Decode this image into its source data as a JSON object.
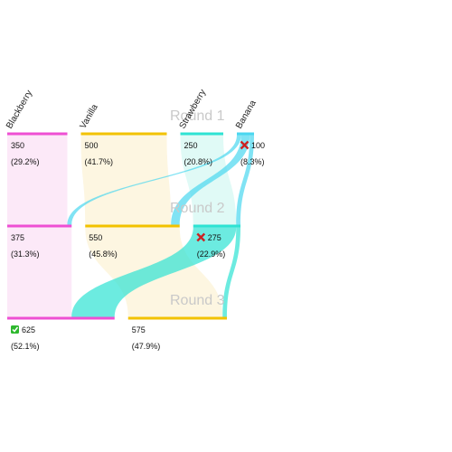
{
  "chart_data": {
    "type": "sankey",
    "title": "",
    "candidates": [
      {
        "key": "blackberry",
        "name": "Blackberry",
        "color": "#ee4fd3",
        "fill": "#f9d7f2"
      },
      {
        "key": "vanilla",
        "name": "Vanilla",
        "color": "#f2c200",
        "fill": "#fcefc8"
      },
      {
        "key": "strawberry",
        "name": "Strawberry",
        "color": "#2ee3d3",
        "fill": "#c6f5ef"
      },
      {
        "key": "banana",
        "name": "Banana",
        "color": "#4ad7f0",
        "fill": "#c9f1fa"
      }
    ],
    "rounds": [
      {
        "label": "Round 1",
        "results": [
          {
            "candidate": "blackberry",
            "votes": 350,
            "votes_text": "350",
            "pct_text": "(29.2%)",
            "status": ""
          },
          {
            "candidate": "vanilla",
            "votes": 500,
            "votes_text": "500",
            "pct_text": "(41.7%)",
            "status": ""
          },
          {
            "candidate": "strawberry",
            "votes": 250,
            "votes_text": "250",
            "pct_text": "(20.8%)",
            "status": ""
          },
          {
            "candidate": "banana",
            "votes": 100,
            "votes_text": "100",
            "pct_text": "(8.3%)",
            "status": "eliminated"
          }
        ]
      },
      {
        "label": "Round 2",
        "results": [
          {
            "candidate": "blackberry",
            "votes": 375,
            "votes_text": "375",
            "pct_text": "(31.3%)",
            "status": ""
          },
          {
            "candidate": "vanilla",
            "votes": 550,
            "votes_text": "550",
            "pct_text": "(45.8%)",
            "status": ""
          },
          {
            "candidate": "strawberry",
            "votes": 275,
            "votes_text": "275",
            "pct_text": "(22.9%)",
            "status": "eliminated"
          }
        ]
      },
      {
        "label": "Round 3",
        "results": [
          {
            "candidate": "blackberry",
            "votes": 625,
            "votes_text": "625",
            "pct_text": "(52.1%)",
            "status": "elected"
          },
          {
            "candidate": "vanilla",
            "votes": 575,
            "votes_text": "575",
            "pct_text": "(47.9%)",
            "status": ""
          }
        ]
      }
    ],
    "transfers": [
      {
        "round": 1,
        "from": "banana",
        "to": "blackberry",
        "votes": 25
      },
      {
        "round": 1,
        "from": "banana",
        "to": "vanilla",
        "votes": 50
      },
      {
        "round": 1,
        "from": "banana",
        "to": "strawberry",
        "votes": 25
      },
      {
        "round": 2,
        "from": "strawberry",
        "to": "blackberry",
        "votes": 250
      },
      {
        "round": 2,
        "from": "strawberry",
        "to": "vanilla",
        "votes": 25
      }
    ],
    "status_colors": {
      "elected": "#2eb82e",
      "eliminated": "#cc2222"
    }
  }
}
